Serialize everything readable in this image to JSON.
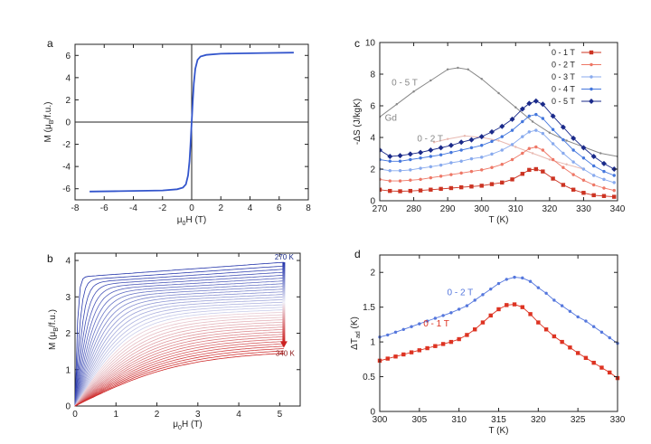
{
  "chart_data": [
    {
      "panel": "a",
      "type": "line",
      "xlabel_main": "μ",
      "xlabel_sub": "0",
      "xlabel_rest": "H (T)",
      "ylabel_main": "M (μ",
      "ylabel_sub": "B",
      "ylabel_rest": "/f.u.)",
      "xlim": [
        -8,
        8
      ],
      "ylim": [
        -7,
        7
      ],
      "xticks": [
        -8,
        -6,
        -4,
        -2,
        0,
        2,
        4,
        6,
        8
      ],
      "yticks": [
        -6,
        -4,
        -2,
        0,
        2,
        4,
        6
      ],
      "color": "#3355cc",
      "series": [
        {
          "x": [
            -7,
            -5,
            -3,
            -2,
            -1,
            -0.6,
            -0.4,
            -0.25,
            -0.15,
            -0.08,
            0,
            0.08,
            0.15,
            0.25,
            0.4,
            0.6,
            1,
            2,
            3,
            5,
            7
          ],
          "y": [
            -6.25,
            -6.22,
            -6.18,
            -6.15,
            -6.05,
            -5.9,
            -5.6,
            -4.8,
            -3.5,
            -2.0,
            0,
            2.0,
            3.5,
            4.8,
            5.6,
            5.9,
            6.05,
            6.15,
            6.18,
            6.22,
            6.25
          ]
        }
      ]
    },
    {
      "panel": "b",
      "type": "line",
      "xlabel_main": "μ",
      "xlabel_sub": "0",
      "xlabel_rest": "H (T)",
      "ylabel_main": "M (μ",
      "ylabel_sub": "B",
      "ylabel_rest": "/f.u.)",
      "xlim": [
        0,
        5.5
      ],
      "ylim": [
        0,
        4.2
      ],
      "xticks": [
        0,
        1,
        2,
        3,
        4,
        5
      ],
      "yticks": [
        0,
        1,
        2,
        3,
        4
      ],
      "family": {
        "t_start": 270,
        "t_end": 340,
        "t_step": 2,
        "m_sat_min": 3.5,
        "m_sat_max": 3.95,
        "m_end_min": 1.45,
        "color_cold": "#2233aa",
        "color_hot": "#cc2222"
      },
      "annotations": [
        {
          "text": "270 K",
          "color": "#1a2a8a"
        },
        {
          "text": "340 K",
          "color": "#8a1111"
        }
      ]
    },
    {
      "panel": "c",
      "type": "line",
      "xlabel": "T (K)",
      "ylabel": "-ΔS (J/kgK)",
      "xlim": [
        270,
        340
      ],
      "ylim": [
        0,
        10
      ],
      "xticks": [
        270,
        280,
        290,
        300,
        310,
        320,
        330,
        340
      ],
      "yticks": [
        0,
        2,
        4,
        6,
        8,
        10
      ],
      "legend_position": "top-right",
      "series": [
        {
          "name": "0 - 1 T",
          "color": "#cc3322",
          "marker": "square",
          "x": [
            270,
            273,
            276,
            279,
            282,
            285,
            288,
            291,
            294,
            297,
            300,
            303,
            306,
            309,
            312,
            314,
            316,
            318,
            321,
            324,
            327,
            330,
            333,
            336,
            339
          ],
          "y": [
            0.7,
            0.62,
            0.6,
            0.62,
            0.65,
            0.7,
            0.75,
            0.8,
            0.85,
            0.9,
            0.95,
            1.05,
            1.15,
            1.35,
            1.7,
            1.95,
            2.0,
            1.85,
            1.4,
            1.0,
            0.7,
            0.5,
            0.35,
            0.3,
            0.25
          ]
        },
        {
          "name": "0 - 2 T",
          "color": "#ee7766",
          "marker": "circle",
          "x": [
            270,
            273,
            276,
            279,
            282,
            285,
            288,
            291,
            294,
            297,
            300,
            303,
            306,
            309,
            312,
            314,
            316,
            318,
            321,
            324,
            327,
            330,
            333,
            336,
            339
          ],
          "y": [
            1.35,
            1.25,
            1.25,
            1.3,
            1.35,
            1.45,
            1.55,
            1.65,
            1.75,
            1.85,
            1.95,
            2.1,
            2.3,
            2.6,
            3.0,
            3.3,
            3.4,
            3.2,
            2.6,
            2.1,
            1.65,
            1.3,
            1.0,
            0.8,
            0.65
          ]
        },
        {
          "name": "0 - 3 T",
          "color": "#88aaee",
          "marker": "circle",
          "x": [
            270,
            273,
            276,
            279,
            282,
            285,
            288,
            291,
            294,
            297,
            300,
            303,
            306,
            309,
            312,
            314,
            316,
            318,
            321,
            324,
            327,
            330,
            333,
            336,
            339
          ],
          "y": [
            2.0,
            1.9,
            1.9,
            1.95,
            2.05,
            2.15,
            2.25,
            2.4,
            2.5,
            2.65,
            2.75,
            2.95,
            3.2,
            3.55,
            4.05,
            4.35,
            4.45,
            4.25,
            3.6,
            3.0,
            2.45,
            2.0,
            1.6,
            1.35,
            1.15
          ]
        },
        {
          "name": "0 - 4 T",
          "color": "#4477dd",
          "marker": "circle",
          "x": [
            270,
            273,
            276,
            279,
            282,
            285,
            288,
            291,
            294,
            297,
            300,
            303,
            306,
            309,
            312,
            314,
            316,
            318,
            321,
            324,
            327,
            330,
            333,
            336,
            339
          ],
          "y": [
            2.6,
            2.5,
            2.5,
            2.6,
            2.7,
            2.8,
            2.9,
            3.05,
            3.2,
            3.35,
            3.5,
            3.75,
            4.05,
            4.45,
            5.0,
            5.35,
            5.45,
            5.2,
            4.5,
            3.85,
            3.2,
            2.7,
            2.2,
            1.85,
            1.6
          ]
        },
        {
          "name": "0 - 5 T",
          "color": "#1a2a8a",
          "marker": "diamond",
          "x": [
            270,
            273,
            276,
            279,
            282,
            285,
            288,
            291,
            294,
            297,
            300,
            303,
            306,
            309,
            312,
            314,
            316,
            318,
            321,
            324,
            327,
            330,
            333,
            336,
            339
          ],
          "y": [
            3.2,
            2.8,
            2.85,
            2.95,
            3.05,
            3.2,
            3.35,
            3.5,
            3.7,
            3.85,
            4.05,
            4.35,
            4.7,
            5.15,
            5.8,
            6.15,
            6.3,
            6.1,
            5.35,
            4.65,
            3.95,
            3.35,
            2.8,
            2.35,
            2.0
          ]
        },
        {
          "name": "Gd 0-5T",
          "color": "#888888",
          "marker": "small",
          "legend": false,
          "x": [
            270,
            275,
            280,
            285,
            290,
            293,
            296,
            300,
            305,
            310,
            315,
            320,
            325,
            330,
            335,
            340
          ],
          "y": [
            5.3,
            6.1,
            6.9,
            7.6,
            8.3,
            8.4,
            8.3,
            7.7,
            6.8,
            5.9,
            5.0,
            4.3,
            3.8,
            3.4,
            3.0,
            2.8
          ]
        },
        {
          "name": "Gd 0-2T",
          "color": "#e8b8b0",
          "marker": "small",
          "legend": false,
          "x": [
            286,
            290,
            295,
            300,
            305,
            310,
            315,
            320,
            325,
            330
          ],
          "y": [
            3.7,
            3.9,
            4.1,
            4.0,
            3.8,
            3.4,
            3.0,
            2.6,
            2.3,
            2.0
          ]
        }
      ],
      "annotations": [
        {
          "text": "0 - 5 T",
          "color": "#888888"
        },
        {
          "text": "Gd",
          "color": "#888888"
        },
        {
          "text": "0 - 2 T",
          "color": "#888888"
        }
      ]
    },
    {
      "panel": "d",
      "type": "line",
      "xlabel": "T (K)",
      "ylabel_main": "ΔT",
      "ylabel_sub": "ad",
      "ylabel_rest": " (K)",
      "xlim": [
        300,
        330
      ],
      "ylim": [
        0,
        2.25
      ],
      "xticks": [
        300,
        305,
        310,
        315,
        320,
        325,
        330
      ],
      "yticks": [
        0,
        0.5,
        1,
        1.5,
        2
      ],
      "series": [
        {
          "name": "0 - 2 T",
          "color": "#5577dd",
          "marker": "circle",
          "x": [
            300,
            301,
            302,
            303,
            304,
            305,
            306,
            307,
            308,
            309,
            310,
            311,
            312,
            313,
            314,
            315,
            316,
            317,
            318,
            319,
            320,
            321,
            322,
            323,
            324,
            325,
            326,
            327,
            328,
            329,
            330
          ],
          "y": [
            1.07,
            1.1,
            1.14,
            1.18,
            1.22,
            1.26,
            1.3,
            1.34,
            1.38,
            1.42,
            1.47,
            1.52,
            1.6,
            1.68,
            1.76,
            1.84,
            1.9,
            1.93,
            1.92,
            1.87,
            1.78,
            1.7,
            1.6,
            1.52,
            1.44,
            1.36,
            1.3,
            1.22,
            1.14,
            1.06,
            0.98
          ]
        },
        {
          "name": "0 - 1 T",
          "color": "#dd3322",
          "marker": "square",
          "x": [
            300,
            301,
            302,
            303,
            304,
            305,
            306,
            307,
            308,
            309,
            310,
            311,
            312,
            313,
            314,
            315,
            316,
            317,
            318,
            319,
            320,
            321,
            322,
            323,
            324,
            325,
            326,
            327,
            328,
            329,
            330
          ],
          "y": [
            0.73,
            0.76,
            0.79,
            0.82,
            0.85,
            0.88,
            0.91,
            0.94,
            0.97,
            1.0,
            1.04,
            1.1,
            1.18,
            1.28,
            1.38,
            1.47,
            1.53,
            1.54,
            1.5,
            1.4,
            1.28,
            1.18,
            1.08,
            1.0,
            0.92,
            0.84,
            0.77,
            0.7,
            0.63,
            0.56,
            0.48
          ]
        }
      ],
      "annotations": [
        {
          "text": "0 - 2 T",
          "color": "#5577dd"
        },
        {
          "text": "0 - 1 T",
          "color": "#dd3322"
        }
      ]
    }
  ],
  "panel_labels": [
    "a",
    "b",
    "c",
    "d"
  ]
}
